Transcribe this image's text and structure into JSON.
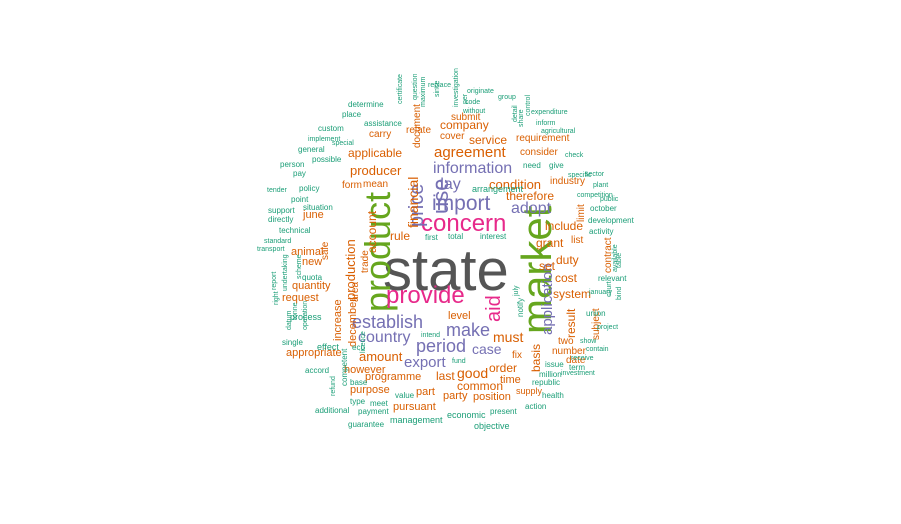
{
  "palette": {
    "gray": "#555555",
    "green": "#66a61e",
    "magenta": "#e7298a",
    "purple": "#7570b3",
    "orange": "#d95f02",
    "teal": "#1b9e77"
  },
  "words": [
    {
      "text": "state",
      "color": "gray"
    },
    {
      "text": "market",
      "color": "green"
    },
    {
      "text": "product",
      "color": "green"
    },
    {
      "text": "provide",
      "color": "magenta"
    },
    {
      "text": "concern",
      "color": "magenta"
    },
    {
      "text": "import",
      "color": "purple"
    },
    {
      "text": "use",
      "color": "purple"
    },
    {
      "text": "price",
      "color": "purple"
    },
    {
      "text": "establish",
      "color": "purple"
    },
    {
      "text": "information",
      "color": "purple"
    },
    {
      "text": "aid",
      "color": "magenta"
    },
    {
      "text": "period",
      "color": "purple"
    },
    {
      "text": "application",
      "color": "purple"
    },
    {
      "text": "make",
      "color": "purple"
    },
    {
      "text": "country",
      "color": "purple"
    },
    {
      "text": "adopt",
      "color": "purple"
    },
    {
      "text": "day",
      "color": "purple"
    },
    {
      "text": "agreement",
      "color": "orange"
    },
    {
      "text": "export",
      "color": "purple"
    },
    {
      "text": "case",
      "color": "purple"
    },
    {
      "text": "financial",
      "color": "orange"
    },
    {
      "text": "condition",
      "color": "orange"
    },
    {
      "text": "must",
      "color": "orange"
    },
    {
      "text": "good",
      "color": "orange"
    },
    {
      "text": "amount",
      "color": "orange"
    },
    {
      "text": "producer",
      "color": "orange"
    },
    {
      "text": "production",
      "color": "orange"
    },
    {
      "text": "account",
      "color": "orange"
    },
    {
      "text": "applicable",
      "color": "orange"
    },
    {
      "text": "company",
      "color": "orange"
    },
    {
      "text": "service",
      "color": "orange"
    },
    {
      "text": "therefore",
      "color": "orange"
    },
    {
      "text": "include",
      "color": "orange"
    },
    {
      "text": "grant",
      "color": "orange"
    },
    {
      "text": "rule",
      "color": "orange"
    },
    {
      "text": "set",
      "color": "orange"
    },
    {
      "text": "duty",
      "color": "orange"
    },
    {
      "text": "system",
      "color": "orange"
    },
    {
      "text": "cost",
      "color": "orange"
    },
    {
      "text": "basis",
      "color": "orange"
    },
    {
      "text": "result",
      "color": "orange"
    },
    {
      "text": "order",
      "color": "orange"
    },
    {
      "text": "level",
      "color": "orange"
    },
    {
      "text": "last",
      "color": "orange"
    },
    {
      "text": "common",
      "color": "orange"
    },
    {
      "text": "programme",
      "color": "orange"
    },
    {
      "text": "however",
      "color": "orange"
    },
    {
      "text": "pursuant",
      "color": "orange"
    },
    {
      "text": "part",
      "color": "orange"
    },
    {
      "text": "party",
      "color": "orange"
    },
    {
      "text": "position",
      "color": "orange"
    },
    {
      "text": "time",
      "color": "orange"
    },
    {
      "text": "purpose",
      "color": "orange"
    },
    {
      "text": "appropriate",
      "color": "orange"
    },
    {
      "text": "december",
      "color": "orange"
    },
    {
      "text": "quantity",
      "color": "orange"
    },
    {
      "text": "request",
      "color": "orange"
    },
    {
      "text": "increase",
      "color": "orange"
    },
    {
      "text": "animal",
      "color": "orange"
    },
    {
      "text": "new",
      "color": "orange"
    },
    {
      "text": "june",
      "color": "orange"
    },
    {
      "text": "sale",
      "color": "orange"
    },
    {
      "text": "area",
      "color": "orange"
    },
    {
      "text": "trade",
      "color": "orange"
    },
    {
      "text": "mean",
      "color": "orange"
    },
    {
      "text": "form",
      "color": "orange"
    },
    {
      "text": "relate",
      "color": "orange"
    },
    {
      "text": "carry",
      "color": "orange"
    },
    {
      "text": "document",
      "color": "orange"
    },
    {
      "text": "cover",
      "color": "orange"
    },
    {
      "text": "submit",
      "color": "orange"
    },
    {
      "text": "consider",
      "color": "orange"
    },
    {
      "text": "requirement",
      "color": "orange"
    },
    {
      "text": "industry",
      "color": "orange"
    },
    {
      "text": "list",
      "color": "orange"
    },
    {
      "text": "limit",
      "color": "orange"
    },
    {
      "text": "contract",
      "color": "orange"
    },
    {
      "text": "subject",
      "color": "orange"
    },
    {
      "text": "two",
      "color": "orange"
    },
    {
      "text": "number",
      "color": "orange"
    },
    {
      "text": "date",
      "color": "orange"
    },
    {
      "text": "fix",
      "color": "orange"
    },
    {
      "text": "supply",
      "color": "orange"
    },
    {
      "text": "republic",
      "color": "teal"
    },
    {
      "text": "million",
      "color": "teal"
    },
    {
      "text": "issue",
      "color": "teal"
    },
    {
      "text": "term",
      "color": "teal"
    },
    {
      "text": "action",
      "color": "teal"
    },
    {
      "text": "health",
      "color": "teal"
    },
    {
      "text": "present",
      "color": "teal"
    },
    {
      "text": "economic",
      "color": "teal"
    },
    {
      "text": "management",
      "color": "teal"
    },
    {
      "text": "objective",
      "color": "teal"
    },
    {
      "text": "guarantee",
      "color": "teal"
    },
    {
      "text": "additional",
      "color": "teal"
    },
    {
      "text": "payment",
      "color": "teal"
    },
    {
      "text": "type",
      "color": "teal"
    },
    {
      "text": "meet",
      "color": "teal"
    },
    {
      "text": "value",
      "color": "teal"
    },
    {
      "text": "base",
      "color": "teal"
    },
    {
      "text": "accord",
      "color": "teal"
    },
    {
      "text": "refund",
      "color": "teal"
    },
    {
      "text": "competent",
      "color": "teal"
    },
    {
      "text": "licence",
      "color": "teal"
    },
    {
      "text": "intend",
      "color": "teal"
    },
    {
      "text": "fund",
      "color": "teal"
    },
    {
      "text": "effect",
      "color": "teal"
    },
    {
      "text": "operation",
      "color": "teal"
    },
    {
      "text": "process",
      "color": "teal"
    },
    {
      "text": "single",
      "color": "teal"
    },
    {
      "text": "tonne",
      "color": "teal"
    },
    {
      "text": "datum",
      "color": "teal"
    },
    {
      "text": "right",
      "color": "teal"
    },
    {
      "text": "undertaking",
      "color": "teal"
    },
    {
      "text": "scheme",
      "color": "teal"
    },
    {
      "text": "quota",
      "color": "teal"
    },
    {
      "text": "report",
      "color": "teal"
    },
    {
      "text": "transport",
      "color": "teal"
    },
    {
      "text": "standard",
      "color": "teal"
    },
    {
      "text": "technical",
      "color": "teal"
    },
    {
      "text": "directly",
      "color": "teal"
    },
    {
      "text": "support",
      "color": "teal"
    },
    {
      "text": "situation",
      "color": "teal"
    },
    {
      "text": "point",
      "color": "teal"
    },
    {
      "text": "tender",
      "color": "teal"
    },
    {
      "text": "policy",
      "color": "teal"
    },
    {
      "text": "pay",
      "color": "teal"
    },
    {
      "text": "person",
      "color": "teal"
    },
    {
      "text": "possible",
      "color": "teal"
    },
    {
      "text": "general",
      "color": "teal"
    },
    {
      "text": "implement",
      "color": "teal"
    },
    {
      "text": "special",
      "color": "teal"
    },
    {
      "text": "custom",
      "color": "teal"
    },
    {
      "text": "assistance",
      "color": "teal"
    },
    {
      "text": "place",
      "color": "teal"
    },
    {
      "text": "determine",
      "color": "teal"
    },
    {
      "text": "certificate",
      "color": "teal"
    },
    {
      "text": "maximum",
      "color": "teal"
    },
    {
      "text": "question",
      "color": "teal"
    },
    {
      "text": "since",
      "color": "teal"
    },
    {
      "text": "replace",
      "color": "teal"
    },
    {
      "text": "per",
      "color": "teal"
    },
    {
      "text": "investigation",
      "color": "teal"
    },
    {
      "text": "originate",
      "color": "teal"
    },
    {
      "text": "code",
      "color": "teal"
    },
    {
      "text": "without",
      "color": "teal"
    },
    {
      "text": "detail",
      "color": "teal"
    },
    {
      "text": "share",
      "color": "teal"
    },
    {
      "text": "control",
      "color": "teal"
    },
    {
      "text": "group",
      "color": "teal"
    },
    {
      "text": "expenditure",
      "color": "teal"
    },
    {
      "text": "inform",
      "color": "teal"
    },
    {
      "text": "agricultural",
      "color": "teal"
    },
    {
      "text": "check",
      "color": "teal"
    },
    {
      "text": "need",
      "color": "teal"
    },
    {
      "text": "give",
      "color": "teal"
    },
    {
      "text": "specific",
      "color": "teal"
    },
    {
      "text": "sector",
      "color": "teal"
    },
    {
      "text": "plant",
      "color": "teal"
    },
    {
      "text": "competition",
      "color": "teal"
    },
    {
      "text": "public",
      "color": "teal"
    },
    {
      "text": "october",
      "color": "teal"
    },
    {
      "text": "development",
      "color": "teal"
    },
    {
      "text": "activity",
      "color": "teal"
    },
    {
      "text": "available",
      "color": "teal"
    },
    {
      "text": "table",
      "color": "teal"
    },
    {
      "text": "relevant",
      "color": "teal"
    },
    {
      "text": "january",
      "color": "teal"
    },
    {
      "text": "court",
      "color": "teal"
    },
    {
      "text": "bind",
      "color": "teal"
    },
    {
      "text": "union",
      "color": "teal"
    },
    {
      "text": "project",
      "color": "teal"
    },
    {
      "text": "show",
      "color": "teal"
    },
    {
      "text": "contain",
      "color": "teal"
    },
    {
      "text": "receive",
      "color": "teal"
    },
    {
      "text": "investment",
      "color": "teal"
    },
    {
      "text": "arrangement",
      "color": "teal"
    },
    {
      "text": "total",
      "color": "teal"
    },
    {
      "text": "interest",
      "color": "teal"
    },
    {
      "text": "notify",
      "color": "teal"
    },
    {
      "text": "july",
      "color": "teal"
    },
    {
      "text": "first",
      "color": "teal"
    },
    {
      "text": "ecu",
      "color": "teal"
    },
    {
      "text": "view",
      "color": "teal"
    }
  ]
}
